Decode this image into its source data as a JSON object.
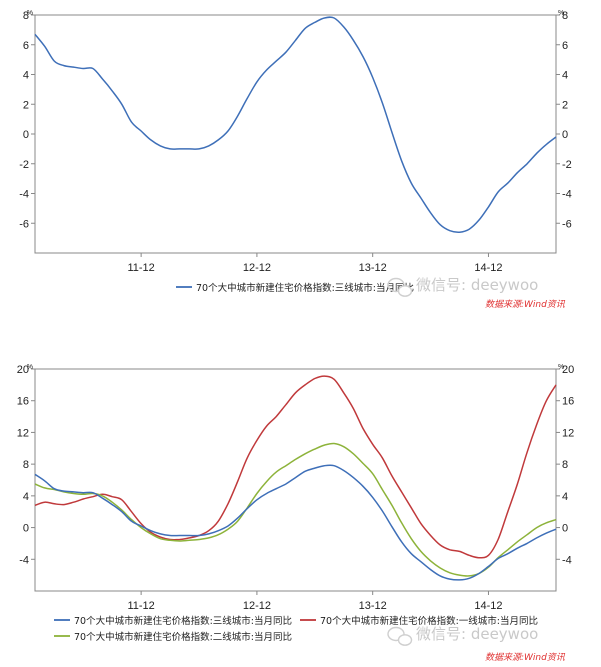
{
  "watermark_text": "微信号: deeywoo",
  "source_note": "数据来源:Wind资讯",
  "chart_data": [
    {
      "type": "line",
      "unit_label": "%",
      "ylim": [
        -8,
        8
      ],
      "y_ticks": [
        -6,
        -4,
        -2,
        0,
        2,
        4,
        6,
        8
      ],
      "x_tick_labels": [
        "11-12",
        "12-12",
        "13-12",
        "14-12"
      ],
      "x": [
        "2011-01",
        "2011-02",
        "2011-03",
        "2011-04",
        "2011-05",
        "2011-06",
        "2011-07",
        "2011-08",
        "2011-09",
        "2011-10",
        "2011-11",
        "2011-12",
        "2012-01",
        "2012-02",
        "2012-03",
        "2012-04",
        "2012-05",
        "2012-06",
        "2012-07",
        "2012-08",
        "2012-09",
        "2012-10",
        "2012-11",
        "2012-12",
        "2013-01",
        "2013-02",
        "2013-03",
        "2013-04",
        "2013-05",
        "2013-06",
        "2013-07",
        "2013-08",
        "2013-09",
        "2013-10",
        "2013-11",
        "2013-12",
        "2014-01",
        "2014-02",
        "2014-03",
        "2014-04",
        "2014-05",
        "2014-06",
        "2014-07",
        "2014-08",
        "2014-09",
        "2014-10",
        "2014-11",
        "2014-12",
        "2015-01",
        "2015-02",
        "2015-03",
        "2015-04",
        "2015-05",
        "2015-06",
        "2015-07"
      ],
      "series": [
        {
          "name": "70个大中城市新建住宅价格指数:三线城市:当月同比",
          "color": "#3e6fb8",
          "values": [
            6.7,
            5.9,
            4.9,
            4.6,
            4.5,
            4.4,
            4.4,
            3.7,
            2.9,
            2.0,
            0.8,
            0.2,
            -0.4,
            -0.8,
            -1.0,
            -1.0,
            -1.0,
            -1.0,
            -0.8,
            -0.4,
            0.2,
            1.2,
            2.4,
            3.5,
            4.3,
            4.9,
            5.5,
            6.3,
            7.1,
            7.5,
            7.8,
            7.8,
            7.2,
            6.3,
            5.2,
            3.8,
            2.1,
            0.1,
            -1.8,
            -3.3,
            -4.3,
            -5.3,
            -6.1,
            -6.5,
            -6.6,
            -6.4,
            -5.8,
            -4.9,
            -3.9,
            -3.3,
            -2.6,
            -2.0,
            -1.3,
            -0.7,
            -0.2
          ]
        }
      ]
    },
    {
      "type": "line",
      "unit_label": "%",
      "ylim": [
        -8,
        20
      ],
      "y_ticks": [
        -4,
        0,
        4,
        8,
        12,
        16,
        20
      ],
      "x_tick_labels": [
        "11-12",
        "12-12",
        "13-12",
        "14-12"
      ],
      "x": [
        "2011-01",
        "2011-02",
        "2011-03",
        "2011-04",
        "2011-05",
        "2011-06",
        "2011-07",
        "2011-08",
        "2011-09",
        "2011-10",
        "2011-11",
        "2011-12",
        "2012-01",
        "2012-02",
        "2012-03",
        "2012-04",
        "2012-05",
        "2012-06",
        "2012-07",
        "2012-08",
        "2012-09",
        "2012-10",
        "2012-11",
        "2012-12",
        "2013-01",
        "2013-02",
        "2013-03",
        "2013-04",
        "2013-05",
        "2013-06",
        "2013-07",
        "2013-08",
        "2013-09",
        "2013-10",
        "2013-11",
        "2013-12",
        "2014-01",
        "2014-02",
        "2014-03",
        "2014-04",
        "2014-05",
        "2014-06",
        "2014-07",
        "2014-08",
        "2014-09",
        "2014-10",
        "2014-11",
        "2014-12",
        "2015-01",
        "2015-02",
        "2015-03",
        "2015-04",
        "2015-05",
        "2015-06",
        "2015-07"
      ],
      "series": [
        {
          "name": "70个大中城市新建住宅价格指数:三线城市:当月同比",
          "color": "#3e6fb8",
          "values": [
            6.7,
            5.9,
            4.9,
            4.6,
            4.5,
            4.4,
            4.4,
            3.7,
            2.9,
            2.0,
            0.8,
            0.2,
            -0.4,
            -0.8,
            -1.0,
            -1.0,
            -1.0,
            -1.0,
            -0.8,
            -0.4,
            0.2,
            1.2,
            2.4,
            3.5,
            4.3,
            4.9,
            5.5,
            6.3,
            7.1,
            7.5,
            7.8,
            7.8,
            7.2,
            6.3,
            5.2,
            3.8,
            2.1,
            0.1,
            -1.8,
            -3.3,
            -4.3,
            -5.3,
            -6.1,
            -6.5,
            -6.6,
            -6.4,
            -5.8,
            -4.9,
            -3.9,
            -3.3,
            -2.6,
            -2.0,
            -1.3,
            -0.7,
            -0.2
          ]
        },
        {
          "name": "70个大中城市新建住宅价格指数:一线城市:当月同比",
          "color": "#c0393b",
          "values": [
            2.8,
            3.2,
            3.0,
            2.9,
            3.2,
            3.6,
            3.9,
            4.2,
            3.9,
            3.5,
            2.0,
            0.5,
            -0.6,
            -1.2,
            -1.5,
            -1.5,
            -1.3,
            -1.0,
            -0.4,
            0.8,
            3.0,
            5.8,
            8.8,
            11.0,
            12.8,
            14.0,
            15.5,
            17.0,
            18.0,
            18.8,
            19.1,
            18.7,
            17.0,
            15.0,
            12.5,
            10.5,
            8.8,
            6.5,
            4.5,
            2.5,
            0.5,
            -1.0,
            -2.2,
            -2.8,
            -3.0,
            -3.5,
            -3.8,
            -3.5,
            -1.5,
            2.0,
            5.5,
            9.5,
            13.0,
            16.0,
            18.0
          ]
        },
        {
          "name": "70个大中城市新建住宅价格指数:二线城市:当月同比",
          "color": "#8db33a",
          "values": [
            5.5,
            5.0,
            4.8,
            4.5,
            4.3,
            4.2,
            4.3,
            4.0,
            3.2,
            2.2,
            1.0,
            0.0,
            -0.8,
            -1.4,
            -1.6,
            -1.7,
            -1.6,
            -1.5,
            -1.3,
            -0.9,
            -0.2,
            0.8,
            2.5,
            4.3,
            5.8,
            7.0,
            7.8,
            8.6,
            9.3,
            9.9,
            10.4,
            10.6,
            10.2,
            9.3,
            8.1,
            6.8,
            4.8,
            2.8,
            0.6,
            -1.4,
            -3.0,
            -4.2,
            -5.1,
            -5.7,
            -6.0,
            -6.1,
            -5.8,
            -5.0,
            -3.8,
            -2.8,
            -1.8,
            -0.9,
            0.0,
            0.6,
            1.0
          ]
        }
      ]
    }
  ]
}
